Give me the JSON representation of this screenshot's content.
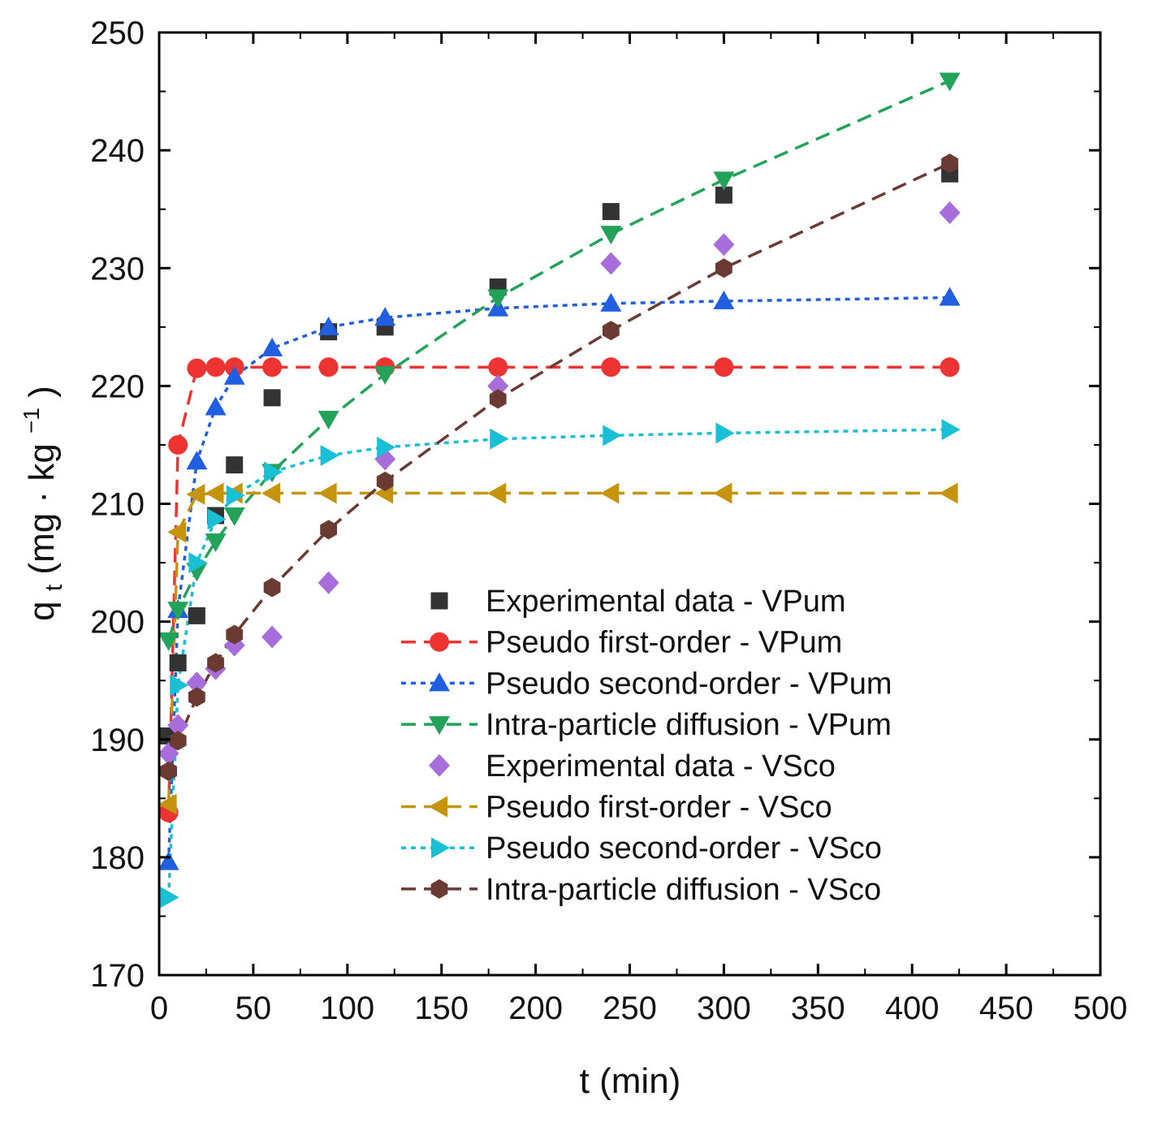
{
  "chart_data": {
    "type": "scatter",
    "title": "",
    "xlabel": "t (min)",
    "ylabel": {
      "base": "q",
      "subscript": "t",
      "units": " (mg · kg",
      "superscript": "−1",
      "close": ")"
    },
    "xlim": [
      0,
      500
    ],
    "ylim": [
      170,
      250
    ],
    "xticks": [
      0,
      50,
      100,
      150,
      200,
      250,
      300,
      350,
      400,
      450,
      500
    ],
    "yticks": [
      170,
      180,
      190,
      200,
      210,
      220,
      230,
      240,
      250
    ],
    "grid": false,
    "legend_position": "center-right",
    "series": [
      {
        "name": "Experimental data - VPum",
        "marker": "square",
        "line": "none",
        "color": "#333333",
        "x": [
          5,
          10,
          20,
          30,
          40,
          60,
          90,
          120,
          180,
          240,
          300,
          420
        ],
        "y": [
          190.3,
          196.5,
          200.5,
          209.0,
          213.3,
          219.0,
          224.6,
          225.0,
          228.4,
          234.8,
          236.2,
          238.0
        ]
      },
      {
        "name": "Pseudo first-order - VPum",
        "marker": "circle",
        "line": "dashed",
        "color": "#ee3333",
        "x": [
          5,
          10,
          20,
          30,
          40,
          60,
          90,
          120,
          180,
          240,
          300,
          420
        ],
        "y": [
          183.8,
          215.0,
          221.5,
          221.6,
          221.6,
          221.6,
          221.6,
          221.6,
          221.6,
          221.6,
          221.6,
          221.6
        ]
      },
      {
        "name": "Pseudo second-order - VPum",
        "marker": "triangle-up",
        "line": "dotted",
        "color": "#1f5fe0",
        "x": [
          5,
          10,
          20,
          30,
          40,
          60,
          90,
          120,
          180,
          240,
          300,
          420
        ],
        "y": [
          179.6,
          201.0,
          213.6,
          218.2,
          220.8,
          223.2,
          225.0,
          225.8,
          226.6,
          227.0,
          227.2,
          227.5
        ]
      },
      {
        "name": "Intra-particle diffusion - VPum",
        "marker": "triangle-down",
        "line": "dashed",
        "color": "#23a35a",
        "x": [
          5,
          10,
          20,
          30,
          40,
          60,
          90,
          120,
          180,
          240,
          300,
          420
        ],
        "y": [
          198.4,
          201.0,
          204.3,
          206.8,
          209.0,
          212.7,
          217.2,
          221.0,
          227.5,
          232.9,
          237.5,
          245.9
        ]
      },
      {
        "name": "Experimental data - VSco",
        "marker": "diamond",
        "line": "none",
        "color": "#a66ddb",
        "x": [
          5,
          10,
          20,
          30,
          40,
          60,
          90,
          120,
          180,
          240,
          300,
          420
        ],
        "y": [
          188.8,
          191.2,
          194.8,
          196.0,
          198.0,
          198.7,
          203.3,
          213.8,
          220.0,
          230.4,
          232.0,
          234.7
        ]
      },
      {
        "name": "Pseudo first-order - VSco",
        "marker": "triangle-left",
        "line": "dashed",
        "color": "#c6930c",
        "x": [
          5,
          10,
          20,
          30,
          40,
          60,
          90,
          120,
          180,
          240,
          300,
          420
        ],
        "y": [
          184.5,
          207.6,
          210.8,
          210.9,
          210.9,
          210.9,
          210.9,
          210.9,
          210.9,
          210.9,
          210.9,
          210.9
        ]
      },
      {
        "name": "Pseudo second-order - VSco",
        "marker": "triangle-right",
        "line": "dotted",
        "color": "#19bfd4",
        "x": [
          5,
          10,
          20,
          30,
          40,
          60,
          90,
          120,
          180,
          240,
          300,
          420
        ],
        "y": [
          176.6,
          194.6,
          205.0,
          208.7,
          210.7,
          212.7,
          214.1,
          214.8,
          215.5,
          215.8,
          216.0,
          216.3
        ]
      },
      {
        "name": "Intra-particle diffusion - VSco",
        "marker": "hexagon",
        "line": "dashed",
        "color": "#6a3a33",
        "x": [
          5,
          10,
          20,
          30,
          40,
          60,
          90,
          120,
          180,
          240,
          300,
          420
        ],
        "y": [
          187.3,
          189.9,
          193.6,
          196.5,
          198.9,
          202.9,
          207.8,
          211.9,
          218.9,
          224.7,
          230.0,
          238.9
        ]
      }
    ]
  }
}
